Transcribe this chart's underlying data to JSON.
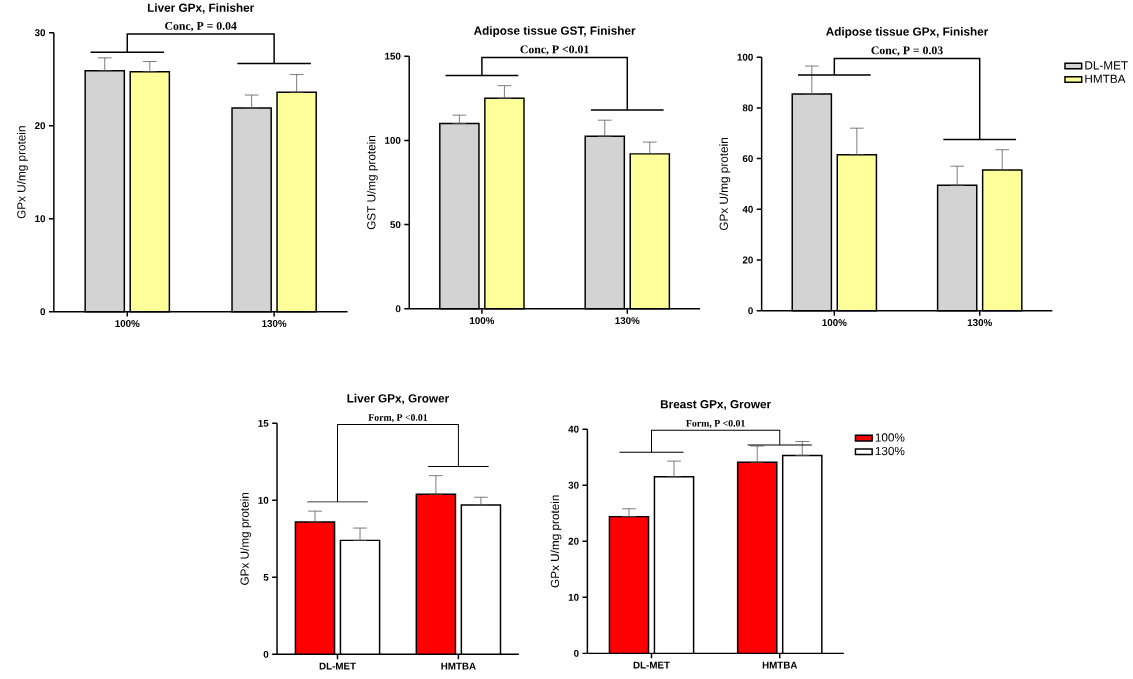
{
  "chart_data": [
    {
      "type": "bar",
      "title": "Liver GPx, Finisher",
      "ylabel": "GPx U/mg protein",
      "categories": [
        "100%",
        "130%"
      ],
      "series": [
        {
          "color": "#d3d3d3",
          "values": [
            25.9,
            21.9
          ],
          "errors": [
            [
              25.9,
              27.3
            ],
            [
              21.9,
              23.3
            ]
          ]
        },
        {
          "color": "#ffff99",
          "values": [
            25.8,
            23.6
          ],
          "errors": [
            [
              25.8,
              26.9
            ],
            [
              23.6,
              25.5
            ]
          ]
        }
      ],
      "ylim": [
        0,
        30
      ],
      "yticks": [
        0,
        10,
        20,
        30
      ],
      "annotations": [
        "Conc, P = 0.04"
      ]
    },
    {
      "type": "bar",
      "title": "Adipose tissue GST, Finisher",
      "ylabel": "GST U/mg protein",
      "categories": [
        "100%",
        "130%"
      ],
      "series": [
        {
          "color": "#d3d3d3",
          "values": [
            110,
            102.5
          ],
          "errors": [
            [
              110,
              115
            ],
            [
              102.5,
              112
            ]
          ]
        },
        {
          "color": "#ffff99",
          "values": [
            125,
            92
          ],
          "errors": [
            [
              125,
              132.5
            ],
            [
              92,
              99
            ]
          ]
        }
      ],
      "ylim": [
        0,
        150
      ],
      "yticks": [
        0,
        50,
        100,
        150
      ],
      "annotations": [
        "Conc, P <0.01"
      ]
    },
    {
      "type": "bar",
      "title": "Adipose tissue GPx, Finisher",
      "ylabel": "GPx U/mg protein",
      "categories": [
        "100%",
        "130%"
      ],
      "series": [
        {
          "name": "DL-MET",
          "color": "#d3d3d3",
          "values": [
            85.5,
            49.5
          ],
          "errors": [
            [
              85.5,
              96.5
            ],
            [
              49.5,
              57
            ]
          ]
        },
        {
          "name": "HMTBA",
          "color": "#ffff99",
          "values": [
            61.5,
            55.5
          ],
          "errors": [
            [
              61.5,
              72
            ],
            [
              55.5,
              63.5
            ]
          ]
        }
      ],
      "ylim": [
        0,
        100
      ],
      "yticks": [
        0,
        20,
        40,
        60,
        80,
        100
      ],
      "annotations": [
        "Conc, P = 0.03"
      ],
      "legend": "top right"
    },
    {
      "type": "bar",
      "title": "Liver GPx, Grower",
      "ylabel": "GPx U/mg protein",
      "categories": [
        "DL-MET",
        "HMTBA"
      ],
      "series": [
        {
          "color": "#ff0000",
          "values": [
            8.6,
            10.4
          ],
          "errors": [
            [
              8.6,
              9.3
            ],
            [
              10.4,
              11.6
            ]
          ]
        },
        {
          "color": "#ffffff",
          "values": [
            7.4,
            9.7
          ],
          "errors": [
            [
              7.4,
              8.2
            ],
            [
              9.7,
              10.2
            ]
          ]
        }
      ],
      "ylim": [
        0,
        15
      ],
      "yticks": [
        0,
        5,
        10,
        15
      ],
      "annotations": [
        "Form, P <0.01"
      ]
    },
    {
      "type": "bar",
      "title": "Breast GPx, Grower",
      "ylabel": "GPx U/mg protein",
      "categories": [
        "DL-MET",
        "HMTBA"
      ],
      "series": [
        {
          "name": "100%",
          "color": "#ff0000",
          "values": [
            24.4,
            34.1
          ],
          "errors": [
            [
              24.4,
              25.8
            ],
            [
              34.1,
              37
            ]
          ]
        },
        {
          "name": "130%",
          "color": "#ffffff",
          "values": [
            31.5,
            35.3
          ],
          "errors": [
            [
              31.5,
              34.3
            ],
            [
              35.3,
              37.8
            ]
          ]
        }
      ],
      "ylim": [
        0,
        40
      ],
      "yticks": [
        0,
        10,
        20,
        30,
        40
      ],
      "annotations": [
        "Form, P <0.01"
      ],
      "legend": "top right"
    }
  ]
}
